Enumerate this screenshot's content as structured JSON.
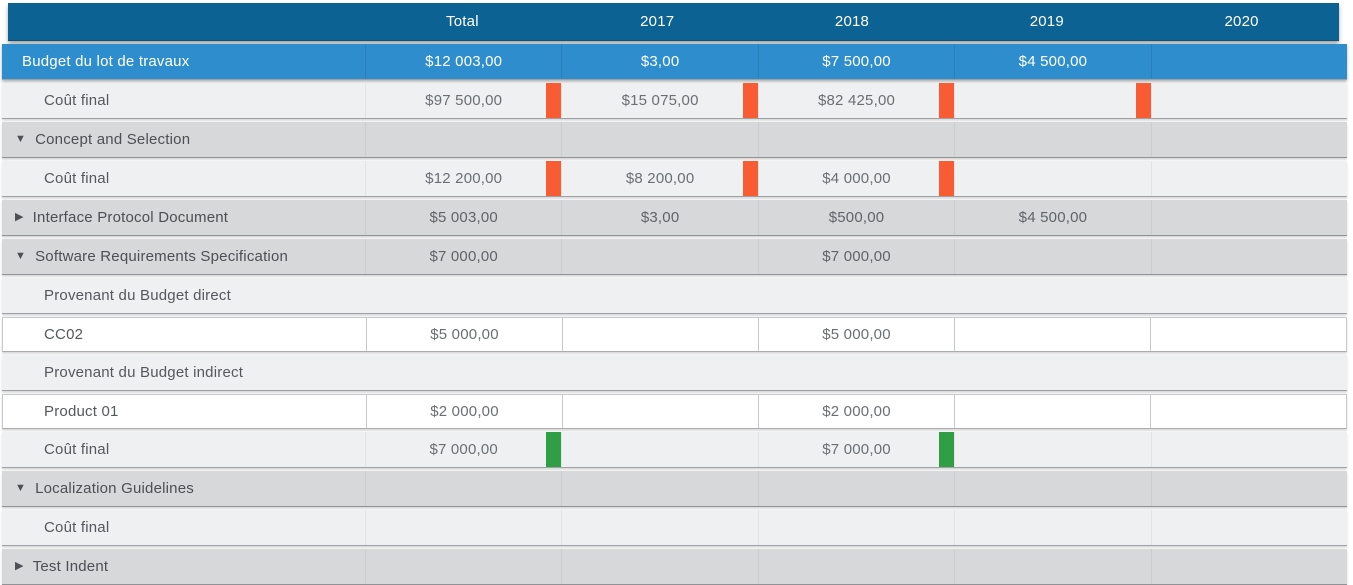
{
  "header": {
    "columns": [
      "",
      "Total",
      "2017",
      "2018",
      "2019",
      "2020"
    ]
  },
  "colors": {
    "header_bg": "#0c6292",
    "budget_row_bg": "#2e8ecd",
    "group_row_bg": "#d6d8da",
    "light_row_bg": "#eef0f2",
    "item_row_bg": "#ffffff",
    "over_budget_indicator": "#f95b33",
    "within_budget_indicator": "#2f9e44"
  },
  "icons": {
    "expanded": "▼",
    "collapsed": "▶"
  },
  "rows": [
    {
      "type": "budget",
      "label": "Budget du lot de travaux",
      "values": [
        "$12 003,00",
        "$3,00",
        "$7 500,00",
        "$4 500,00",
        ""
      ],
      "indicators": [
        "",
        "",
        "",
        "",
        ""
      ]
    },
    {
      "type": "cost",
      "label": "Coût final",
      "values": [
        "$97 500,00",
        "$15 075,00",
        "$82 425,00",
        "",
        ""
      ],
      "indicators": [
        "over",
        "over",
        "over",
        "over",
        ""
      ]
    },
    {
      "type": "group",
      "label": "Concept and Selection",
      "expanded": true,
      "values": [
        "",
        "",
        "",
        "",
        ""
      ],
      "indicators": [
        "",
        "",
        "",
        "",
        ""
      ]
    },
    {
      "type": "cost",
      "label": "Coût final",
      "values": [
        "$12 200,00",
        "$8 200,00",
        "$4 000,00",
        "",
        ""
      ],
      "indicators": [
        "over",
        "over",
        "over",
        "",
        ""
      ]
    },
    {
      "type": "group",
      "label": "Interface Protocol Document",
      "expanded": false,
      "values": [
        "$5 003,00",
        "$3,00",
        "$500,00",
        "$4 500,00",
        ""
      ],
      "indicators": [
        "",
        "",
        "",
        "",
        ""
      ]
    },
    {
      "type": "group",
      "label": "Software Requirements Specification",
      "expanded": true,
      "values": [
        "$7 000,00",
        "",
        "$7 000,00",
        "",
        ""
      ],
      "indicators": [
        "",
        "",
        "",
        "",
        ""
      ]
    },
    {
      "type": "subheader",
      "label": "Provenant du Budget direct"
    },
    {
      "type": "item",
      "label": "CC02",
      "values": [
        "$5 000,00",
        "",
        "$5 000,00",
        "",
        ""
      ],
      "indicators": [
        "",
        "",
        "",
        "",
        ""
      ]
    },
    {
      "type": "subheader",
      "label": "Provenant du Budget indirect"
    },
    {
      "type": "item",
      "label": "Product 01",
      "values": [
        "$2 000,00",
        "",
        "$2 000,00",
        "",
        ""
      ],
      "indicators": [
        "",
        "",
        "",
        "",
        ""
      ]
    },
    {
      "type": "cost",
      "label": "Coût final",
      "values": [
        "$7 000,00",
        "",
        "$7 000,00",
        "",
        ""
      ],
      "indicators": [
        "ok",
        "",
        "ok",
        "",
        ""
      ]
    },
    {
      "type": "group",
      "label": "Localization Guidelines",
      "expanded": true,
      "values": [
        "",
        "",
        "",
        "",
        ""
      ],
      "indicators": [
        "",
        "",
        "",
        "",
        ""
      ]
    },
    {
      "type": "cost",
      "label": "Coût final",
      "values": [
        "",
        "",
        "",
        "",
        ""
      ],
      "indicators": [
        "",
        "",
        "",
        "",
        ""
      ]
    },
    {
      "type": "group",
      "label": "Test Indent",
      "expanded": false,
      "values": [
        "",
        "",
        "",
        "",
        ""
      ],
      "indicators": [
        "",
        "",
        "",
        "",
        ""
      ]
    }
  ]
}
